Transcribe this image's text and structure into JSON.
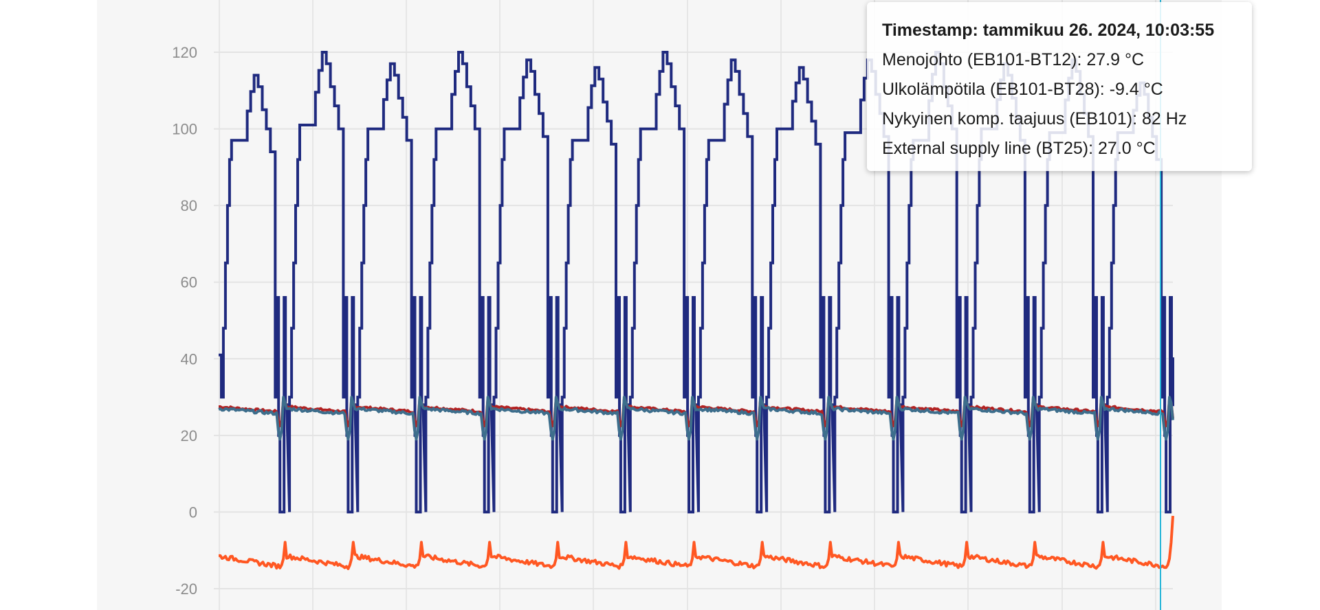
{
  "tooltip": {
    "timestamp": "Timestamp: tammikuu 26. 2024, 10:03:55",
    "rows": [
      "Menojohto (EB101-BT12): 27.9 °C",
      "Ulkolämpötila (EB101-BT28): -9.4 °C",
      "Nykyinen komp. taajuus (EB101): 82 Hz",
      "External supply line (BT25): 27.0 °C"
    ]
  },
  "chart_data": {
    "type": "line",
    "title": "",
    "xlabel": "",
    "ylabel": "",
    "ylim": [
      -20,
      120
    ],
    "yticks": [
      -20,
      0,
      20,
      40,
      60,
      80,
      100,
      120
    ],
    "grid": true,
    "cycles": 14,
    "series": [
      {
        "name": "Nykyinen komp. taajuus (EB101)",
        "color": "#1f2a7f",
        "unit": "Hz",
        "cycle_peaks": [
          114,
          120,
          117,
          120,
          118,
          116,
          120,
          118,
          116,
          118,
          120,
          117,
          118,
          112
        ],
        "plateau": [
          97,
          101,
          100,
          100,
          100,
          97,
          100,
          97,
          100,
          99,
          97,
          100,
          99,
          99
        ],
        "start": 41,
        "min": 0,
        "off_spike": 56,
        "end": 40
      },
      {
        "name": "Menojohto (EB101-BT12)",
        "color": "#b22222",
        "unit": "°C",
        "range": [
          22,
          30
        ],
        "typical": 27.5
      },
      {
        "name": "External supply line (BT25)",
        "color": "#3d6e8c",
        "unit": "°C",
        "range": [
          19,
          31
        ],
        "typical": 27.0
      },
      {
        "name": "Ulkolämpötila (EB101-BT28)",
        "color": "#ff5722",
        "unit": "°C",
        "range": [
          -17,
          1
        ],
        "typical": -11
      }
    ],
    "cursor_color": "#29b6d8"
  }
}
